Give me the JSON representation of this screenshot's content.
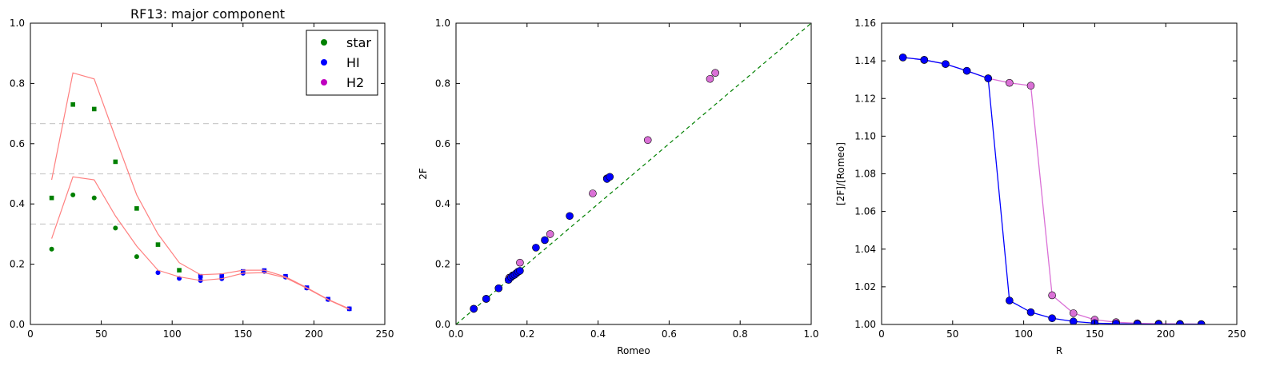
{
  "chart_data": [
    {
      "type": "scatter",
      "title": "RF13: major component",
      "xlabel": "",
      "ylabel": "",
      "xlim": [
        0,
        250
      ],
      "ylim": [
        0,
        1.0
      ],
      "xticks": [
        0,
        50,
        100,
        150,
        200,
        250
      ],
      "yticks": [
        0.0,
        0.2,
        0.4,
        0.6,
        0.8,
        1.0
      ],
      "xtick_labels": [
        "0",
        "50",
        "100",
        "150",
        "200",
        "250"
      ],
      "ytick_labels": [
        "0.0",
        "0.2",
        "0.4",
        "0.6",
        "0.8",
        "1.0"
      ],
      "legend": {
        "placement": "top-right",
        "entries": [
          {
            "label": "star",
            "color": "#008000"
          },
          {
            "label": "HI",
            "color": "#0000ff"
          },
          {
            "label": "H2",
            "color": "#bf00bf"
          }
        ]
      },
      "hlines": {
        "values": [
          0.3333,
          0.5,
          0.6667
        ],
        "color": "#cccccc",
        "style": "dashed"
      },
      "series": [
        {
          "kind": "circle",
          "color": "#008000",
          "x": [
            15,
            30,
            45,
            60,
            75
          ],
          "y": [
            0.25,
            0.43,
            0.42,
            0.32,
            0.225
          ]
        },
        {
          "kind": "square",
          "color": "#008000",
          "x": [
            15,
            30,
            45,
            60,
            75,
            90,
            105
          ],
          "y": [
            0.42,
            0.73,
            0.715,
            0.54,
            0.385,
            0.265,
            0.18
          ]
        },
        {
          "kind": "circle",
          "color": "#0000ff",
          "x": [
            90,
            105,
            120,
            135,
            150,
            165,
            180,
            195,
            210,
            225
          ],
          "y": [
            0.172,
            0.153,
            0.146,
            0.152,
            0.17,
            0.176,
            0.157,
            0.121,
            0.083,
            0.052
          ]
        },
        {
          "kind": "square",
          "color": "#0000ff",
          "x": [
            120,
            135,
            150,
            165,
            180,
            195,
            210,
            225
          ],
          "y": [
            0.16,
            0.162,
            0.176,
            0.179,
            0.16,
            0.122,
            0.084,
            0.052
          ]
        },
        {
          "kind": "line",
          "color": "#ff8080",
          "x": [
            15,
            30,
            45,
            60,
            75,
            90,
            105,
            120,
            135,
            150,
            165,
            180,
            195,
            210,
            225
          ],
          "y": [
            0.285,
            0.49,
            0.48,
            0.36,
            0.26,
            0.18,
            0.158,
            0.146,
            0.152,
            0.17,
            0.172,
            0.155,
            0.12,
            0.082,
            0.05
          ]
        },
        {
          "kind": "line",
          "color": "#ff8080",
          "x": [
            15,
            30,
            45,
            60,
            75,
            90,
            105,
            120,
            135,
            150,
            165,
            180,
            195,
            210,
            225
          ],
          "y": [
            0.48,
            0.835,
            0.815,
            0.62,
            0.43,
            0.3,
            0.205,
            0.165,
            0.168,
            0.18,
            0.18,
            0.158,
            0.122,
            0.083,
            0.052
          ]
        }
      ]
    },
    {
      "type": "scatter",
      "title": "",
      "xlabel": "Romeo",
      "ylabel": "2F",
      "xlim": [
        0,
        1.0
      ],
      "ylim": [
        0,
        1.0
      ],
      "xticks": [
        0.0,
        0.2,
        0.4,
        0.6,
        0.8,
        1.0
      ],
      "yticks": [
        0.0,
        0.2,
        0.4,
        0.6,
        0.8,
        1.0
      ],
      "xtick_labels": [
        "0.0",
        "0.2",
        "0.4",
        "0.6",
        "0.8",
        "1.0"
      ],
      "ytick_labels": [
        "0.0",
        "0.2",
        "0.4",
        "0.6",
        "0.8",
        "1.0"
      ],
      "diagonal": {
        "color": "#008000",
        "style": "dashed"
      },
      "series": [
        {
          "kind": "circle",
          "color": "#da70d6",
          "x": [
            0.05,
            0.085,
            0.12,
            0.15,
            0.16,
            0.17,
            0.175,
            0.18,
            0.265,
            0.385,
            0.425,
            0.54,
            0.715,
            0.73
          ],
          "y": [
            0.052,
            0.085,
            0.12,
            0.155,
            0.163,
            0.17,
            0.175,
            0.205,
            0.3,
            0.435,
            0.485,
            0.612,
            0.815,
            0.835
          ]
        },
        {
          "kind": "circle",
          "color": "#0000ff",
          "x": [
            0.05,
            0.085,
            0.12,
            0.148,
            0.155,
            0.16,
            0.165,
            0.17,
            0.175,
            0.18,
            0.225,
            0.25,
            0.32,
            0.425,
            0.433
          ],
          "y": [
            0.052,
            0.085,
            0.12,
            0.148,
            0.157,
            0.162,
            0.165,
            0.17,
            0.175,
            0.178,
            0.255,
            0.28,
            0.36,
            0.483,
            0.49
          ]
        }
      ]
    },
    {
      "type": "line",
      "title": "",
      "xlabel": "R",
      "ylabel": "[2F]/[Romeo]",
      "xlim": [
        0,
        250
      ],
      "ylim": [
        1.0,
        1.16
      ],
      "xticks": [
        0,
        50,
        100,
        150,
        200,
        250
      ],
      "yticks": [
        1.0,
        1.02,
        1.04,
        1.06,
        1.08,
        1.1,
        1.12,
        1.14,
        1.16
      ],
      "xtick_labels": [
        "0",
        "50",
        "100",
        "150",
        "200",
        "250"
      ],
      "ytick_labels": [
        "1.00",
        "1.02",
        "1.04",
        "1.06",
        "1.08",
        "1.10",
        "1.12",
        "1.14",
        "1.16"
      ],
      "series": [
        {
          "kind": "line-marker",
          "color": "#da70d6",
          "x": [
            15,
            30,
            45,
            60,
            75,
            90,
            105,
            120,
            135,
            150,
            165,
            180,
            195,
            210,
            225
          ],
          "y": [
            1.1418,
            1.1405,
            1.1383,
            1.1347,
            1.1307,
            1.1283,
            1.1268,
            1.0155,
            1.006,
            1.0025,
            1.0012,
            1.0006,
            1.0004,
            1.0003,
            1.0002
          ]
        },
        {
          "kind": "line-marker",
          "color": "#0000ff",
          "x": [
            15,
            30,
            45,
            60,
            75,
            90,
            105,
            120,
            135,
            150,
            165,
            180,
            195,
            210,
            225
          ],
          "y": [
            1.1418,
            1.1405,
            1.1383,
            1.1347,
            1.1307,
            1.0127,
            1.0065,
            1.0033,
            1.0016,
            1.0007,
            1.0004,
            1.0002,
            1.0001,
            1.0001,
            1.0001
          ]
        }
      ]
    }
  ]
}
